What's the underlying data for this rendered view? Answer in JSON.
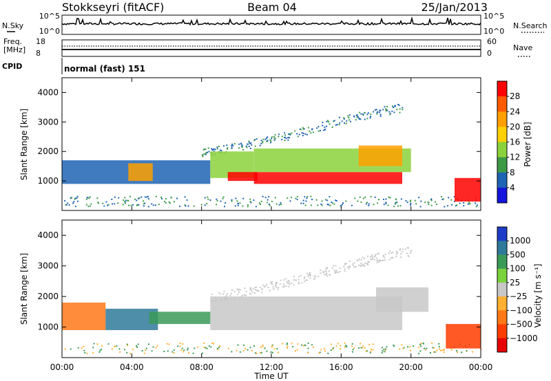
{
  "header": {
    "station": "Stokkseyri (fitACF)",
    "beam": "Beam 04",
    "date": "25/Jan/2013"
  },
  "noise_panel": {
    "left_label": "N.Sky",
    "right_label": "N.Search",
    "left_ticks": [
      "10^5",
      "10^0"
    ],
    "right_ticks": [
      "10^5",
      "10^0"
    ]
  },
  "freq_panel": {
    "left_label_top": "Freq.",
    "left_label_bottom": "[MHz]",
    "left_ticks": [
      "18",
      "8"
    ],
    "right_label": "Nave",
    "right_ticks": [
      "60",
      "0"
    ]
  },
  "cpid_panel": {
    "label": "CPID",
    "mode_text": "normal (fast) 151"
  },
  "x_axis": {
    "label": "Time UT",
    "ticks": [
      "00:00",
      "04:00",
      "08:00",
      "12:00",
      "16:00",
      "20:00",
      "00:00"
    ]
  },
  "power_panel": {
    "ylabel": "Slant Range [km]",
    "yticks": [
      "1000",
      "2000",
      "3000",
      "4000"
    ],
    "colorbar_label": "Power [dB]",
    "colorbar_ticks": [
      "28",
      "24",
      "20",
      "16",
      "12",
      "8",
      "4"
    ],
    "colorbar_colors": [
      "#ff0000",
      "#ff5a00",
      "#ffa000",
      "#ffd000",
      "#8cd23c",
      "#3c9a46",
      "#1e64b4",
      "#1414dc"
    ]
  },
  "velocity_panel": {
    "ylabel": "Slant Range [km]",
    "yticks": [
      "1000",
      "2000",
      "3000",
      "4000"
    ],
    "colorbar_label": "Velocity [m s⁻¹]",
    "colorbar_ticks": [
      "1000",
      "500",
      "100",
      "25",
      "−25",
      "−100",
      "−500",
      "−1000"
    ],
    "colorbar_colors": [
      "#1e3cc8",
      "#2f7a9a",
      "#3a9a58",
      "#7ad23c",
      "#c8c8c8",
      "#ffb030",
      "#ff7818",
      "#ff3c00",
      "#e60000"
    ]
  },
  "chart_data": {
    "type": "heatmap",
    "x_unit": "hours UT",
    "xlim": [
      0,
      24
    ],
    "ylim": [
      0,
      4500
    ],
    "power_bands": [
      {
        "t0": 0.0,
        "t1": 8.5,
        "r0": 900,
        "r1": 1700,
        "level": "low"
      },
      {
        "t0": 3.8,
        "t1": 5.2,
        "r0": 1000,
        "r1": 1600,
        "level": "high"
      },
      {
        "t0": 8.5,
        "t1": 11.0,
        "r0": 1100,
        "r1": 2000,
        "level": "mid"
      },
      {
        "t0": 9.5,
        "t1": 11.2,
        "r0": 1000,
        "r1": 1300,
        "level": "peak"
      },
      {
        "t0": 11.0,
        "t1": 19.5,
        "r0": 900,
        "r1": 1300,
        "level": "peak"
      },
      {
        "t0": 11.0,
        "t1": 20.0,
        "r0": 1300,
        "r1": 2100,
        "level": "mid"
      },
      {
        "t0": 17.0,
        "t1": 19.5,
        "r0": 1500,
        "r1": 2200,
        "level": "high"
      },
      {
        "t0": 22.5,
        "t1": 24.0,
        "r0": 300,
        "r1": 1100,
        "level": "peak"
      }
    ],
    "power_arc": {
      "t0": 8.0,
      "t1": 19.5,
      "r_low": 2000,
      "r_high": 3500
    },
    "velocity_bands": [
      {
        "t0": 0.0,
        "t1": 2.5,
        "r0": 900,
        "r1": 1800,
        "v": -100
      },
      {
        "t0": 2.5,
        "t1": 5.5,
        "r0": 900,
        "r1": 1600,
        "v": 500
      },
      {
        "t0": 5.0,
        "t1": 8.5,
        "r0": 1100,
        "r1": 1500,
        "v": 100
      },
      {
        "t0": 8.5,
        "t1": 19.5,
        "r0": 900,
        "r1": 2000,
        "v": 0
      },
      {
        "t0": 18.0,
        "t1": 21.0,
        "r0": 1500,
        "r1": 2300,
        "v": 0
      },
      {
        "t0": 22.0,
        "t1": 24.0,
        "r0": 300,
        "r1": 1100,
        "v": -500
      }
    ],
    "velocity_arc": {
      "t0": 8.5,
      "t1": 20.0,
      "r_low": 2000,
      "r_high": 3500
    }
  }
}
